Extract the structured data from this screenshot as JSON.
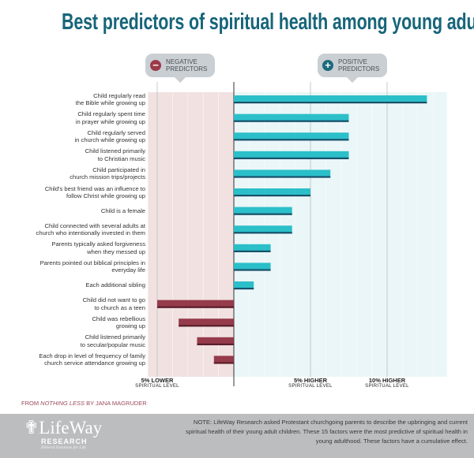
{
  "title": "Best predictors of spiritual health among young adults",
  "legend": {
    "negative": {
      "label": "NEGATIVE PREDICTORS",
      "icon": "minus-circle-icon",
      "color": "#9b3a4a"
    },
    "positive": {
      "label": "POSITIVE PREDICTORS",
      "icon": "plus-circle-icon",
      "color": "#1b6a7d"
    }
  },
  "chart_data": {
    "type": "bar",
    "orientation": "horizontal",
    "title": "Best predictors of spiritual health among young adults",
    "xunit": "% spiritual level",
    "xlim": [
      -6,
      14
    ],
    "grid": true,
    "colors": {
      "positive": "#2bbfc9",
      "positive_shadow": "#17506a",
      "negative": "#953b4b",
      "negative_shadow": "#5a1e2a",
      "negative_bg": "#f1e1e1",
      "positive_bg": "#eaf6f7"
    },
    "ticks": [
      {
        "value": -5,
        "label": "5% LOWER",
        "sub": "SPIRITUAL LEVEL"
      },
      {
        "value": 5,
        "label": "5% HIGHER",
        "sub": "SPIRITUAL LEVEL"
      },
      {
        "value": 10,
        "label": "10% HIGHER",
        "sub": "SPIRITUAL LEVEL"
      }
    ],
    "categories": [
      "Child regularly read\nthe Bible while growing up",
      "Child regularly spent time\nin prayer while growing up",
      "Child regularly served\nin church while growing up",
      "Child listened primarily\nto Christian music",
      "Child participated in\nchurch mission trips/projects",
      "Child's best friend was an influence to\nfollow Christ while growing up",
      "Child is a female",
      "Child connected with several adults at\nchurch who intentionally invested in them",
      "Parents typically asked forgiveness\nwhen they messed up",
      "Parents pointed out biblical principles in\neveryday life",
      "Each additional sibling",
      "Child did not want to go\nto church as a teen",
      "Child was rebellious\ngrowing up",
      "Child listened primarily\nto secular/popular music",
      "Each drop in level of frequency of family\nchurch service attendance growing up"
    ],
    "values": [
      12.6,
      7.5,
      7.5,
      7.5,
      6.3,
      5.0,
      3.8,
      3.8,
      2.4,
      2.4,
      1.3,
      -5.0,
      -3.6,
      -2.4,
      -1.3
    ]
  },
  "source": {
    "prefix": "FROM ",
    "book": "NOTHING LESS",
    "suffix": " BY JANA MAGRUDER"
  },
  "footer": {
    "logo_name": "LifeWay",
    "logo_sub": "RESEARCH",
    "logo_tagline": "Biblical Solutions for Life",
    "note": "NOTE: LifeWay Research asked Protestant churchgoing parents to describe the upbringing and current spiritual health of their young adult children. These 15 factors were the most predictive of spiritual health in young adulthood. These factors have a cumulative effect."
  }
}
